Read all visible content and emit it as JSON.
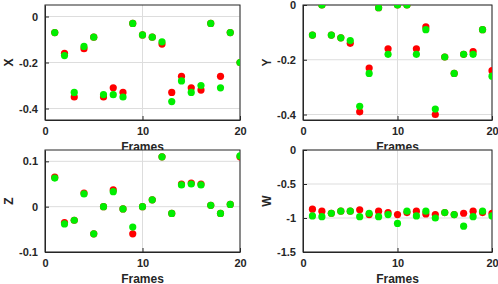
{
  "chart_data": [
    {
      "type": "scatter",
      "x_label": "Frames",
      "y_label": "X",
      "x": [
        1,
        2,
        3,
        4,
        5,
        6,
        7,
        8,
        9,
        10,
        11,
        12,
        13,
        14,
        15,
        16,
        17,
        18,
        19,
        20
      ],
      "xlim": [
        0,
        20
      ],
      "xticks": [
        0,
        10,
        20
      ],
      "ylim": [
        -0.45,
        0.05
      ],
      "yticks": [
        -0.4,
        -0.2,
        0
      ],
      "grid": true,
      "series": [
        {
          "color": "#ff0000",
          "marker": "circle",
          "values": [
            -0.07,
            -0.16,
            -0.35,
            -0.14,
            -0.09,
            -0.35,
            -0.31,
            -0.33,
            -0.03,
            -0.08,
            -0.09,
            -0.12,
            -0.33,
            -0.26,
            -0.31,
            -0.32,
            -0.03,
            -0.26,
            -0.07,
            -0.2
          ]
        },
        {
          "color": "#00ee00",
          "marker": "circle",
          "values": [
            -0.07,
            -0.17,
            -0.33,
            -0.13,
            -0.09,
            -0.34,
            -0.34,
            -0.35,
            -0.03,
            -0.08,
            -0.09,
            -0.11,
            -0.37,
            -0.28,
            -0.33,
            -0.3,
            -0.03,
            -0.31,
            -0.07,
            -0.2
          ]
        }
      ]
    },
    {
      "type": "scatter",
      "x_label": "Frames",
      "y_label": "Y",
      "x": [
        1,
        2,
        3,
        4,
        5,
        6,
        7,
        8,
        9,
        10,
        11,
        12,
        13,
        14,
        15,
        16,
        17,
        18,
        19,
        20
      ],
      "xlim": [
        0,
        20
      ],
      "xticks": [
        0,
        10,
        20
      ],
      "ylim": [
        -0.42,
        0
      ],
      "yticks": [
        -0.4,
        -0.2,
        0
      ],
      "grid": true,
      "series": [
        {
          "color": "#ff0000",
          "marker": "circle",
          "values": [
            -0.11,
            0,
            -0.11,
            -0.12,
            -0.14,
            -0.39,
            -0.23,
            -0.01,
            -0.16,
            0,
            0,
            -0.16,
            -0.08,
            -0.4,
            -0.19,
            -0.25,
            -0.18,
            -0.17,
            -0.09,
            -0.24
          ]
        },
        {
          "color": "#00ee00",
          "marker": "circle",
          "values": [
            -0.11,
            0,
            -0.11,
            -0.12,
            -0.13,
            -0.37,
            -0.25,
            -0.01,
            -0.18,
            0,
            0,
            -0.18,
            -0.09,
            -0.38,
            -0.19,
            -0.25,
            -0.18,
            -0.18,
            -0.09,
            -0.26
          ]
        }
      ]
    },
    {
      "type": "scatter",
      "x_label": "Frames",
      "y_label": "Z",
      "x": [
        1,
        2,
        3,
        4,
        5,
        6,
        7,
        8,
        9,
        10,
        11,
        12,
        13,
        14,
        15,
        16,
        17,
        18,
        19,
        20
      ],
      "xlim": [
        0,
        20
      ],
      "xticks": [
        0,
        10,
        20
      ],
      "ylim": [
        -0.1,
        0.125
      ],
      "yticks": [
        -0.1,
        0,
        0.1
      ],
      "grid": true,
      "series": [
        {
          "color": "#ff0000",
          "marker": "circle",
          "values": [
            0.065,
            -0.035,
            -0.03,
            0.03,
            -0.06,
            0,
            0.037,
            -0.005,
            -0.06,
            0,
            0.015,
            0.11,
            -0.015,
            0.05,
            0.052,
            0.05,
            0.003,
            -0.015,
            0.005,
            0.11
          ]
        },
        {
          "color": "#00ee00",
          "marker": "circle",
          "values": [
            0.063,
            -0.038,
            -0.03,
            0.028,
            -0.06,
            0,
            0.033,
            -0.005,
            -0.045,
            0,
            0.015,
            0.11,
            -0.015,
            0.048,
            0.05,
            0.048,
            0.003,
            -0.015,
            0.005,
            0.112
          ]
        }
      ]
    },
    {
      "type": "scatter",
      "x_label": "Frames",
      "y_label": "W",
      "x": [
        1,
        2,
        3,
        4,
        5,
        6,
        7,
        8,
        9,
        10,
        11,
        12,
        13,
        14,
        15,
        16,
        17,
        18,
        19,
        20
      ],
      "xlim": [
        0,
        20
      ],
      "xticks": [
        0,
        10,
        20
      ],
      "ylim": [
        -1.5,
        0
      ],
      "yticks": [
        -1.5,
        -1,
        -0.5,
        0
      ],
      "grid": true,
      "series": [
        {
          "color": "#ff0000",
          "marker": "circle",
          "values": [
            -0.87,
            -0.9,
            -0.93,
            -0.9,
            -0.9,
            -0.88,
            -0.95,
            -0.9,
            -0.92,
            -0.95,
            -0.92,
            -0.9,
            -0.94,
            -0.95,
            -0.92,
            -0.95,
            -0.93,
            -0.9,
            -0.92,
            -0.93
          ]
        },
        {
          "color": "#00ee00",
          "marker": "circle",
          "values": [
            -0.97,
            -0.98,
            -0.93,
            -0.9,
            -0.9,
            -0.98,
            -0.93,
            -0.98,
            -0.95,
            -1.08,
            -0.9,
            -0.97,
            -0.9,
            -1.0,
            -0.92,
            -0.95,
            -1.12,
            -0.98,
            -0.9,
            -0.97
          ]
        }
      ]
    }
  ]
}
